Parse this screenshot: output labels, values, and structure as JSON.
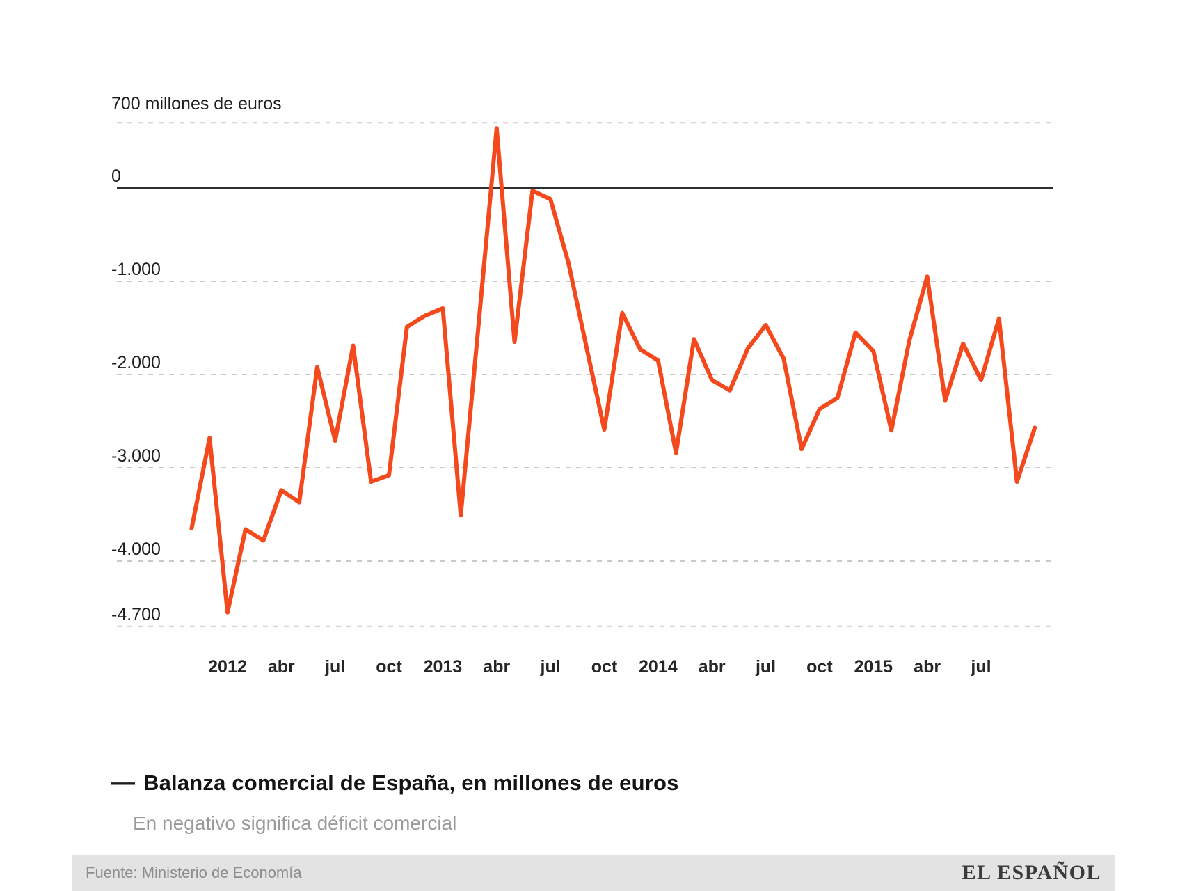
{
  "chart": {
    "y_ticks": [
      {
        "value": 700,
        "label": "700 millones de euros"
      },
      {
        "value": 0,
        "label": "0"
      },
      {
        "value": -1000,
        "label": "-1.000"
      },
      {
        "value": -2000,
        "label": "-2.000"
      },
      {
        "value": -3000,
        "label": "-3.000"
      },
      {
        "value": -4000,
        "label": "-4.000"
      },
      {
        "value": -4700,
        "label": "-4.700"
      }
    ],
    "x_ticks": [
      "2012",
      "abr",
      "jul",
      "oct",
      "2013",
      "abr",
      "jul",
      "oct",
      "2014",
      "abr",
      "jul",
      "oct",
      "2015",
      "abr",
      "jul"
    ]
  },
  "chart_data": {
    "type": "line",
    "title": "Balanza comercial de España, en millones de euros",
    "subtitle": "En negativo significa déficit comercial",
    "unit": "millones de euros",
    "ylim": [
      -4700,
      700
    ],
    "grid": "horizontal-dashed",
    "legend_position": "bottom-left",
    "series_color": "#f4481d",
    "zero_line_color": "#2f2f2f",
    "x": [
      "nov 2011",
      "dic 2011",
      "ene 2012",
      "feb 2012",
      "mar 2012",
      "abr 2012",
      "may 2012",
      "jun 2012",
      "jul 2012",
      "ago 2012",
      "sep 2012",
      "oct 2012",
      "nov 2012",
      "dic 2012",
      "ene 2013",
      "feb 2013",
      "mar 2013",
      "abr 2013",
      "may 2013",
      "jun 2013",
      "jul 2013",
      "ago 2013",
      "sep 2013",
      "oct 2013",
      "nov 2013",
      "dic 2013",
      "ene 2014",
      "feb 2014",
      "mar 2014",
      "abr 2014",
      "may 2014",
      "jun 2014",
      "jul 2014",
      "ago 2014",
      "sep 2014",
      "oct 2014",
      "nov 2014",
      "dic 2014",
      "ene 2015",
      "feb 2015",
      "mar 2015",
      "abr 2015",
      "may 2015",
      "jun 2015",
      "jul 2015",
      "ago 2015",
      "sep 2015",
      "oct 2015"
    ],
    "values": [
      -3650,
      -2680,
      -4550,
      -3660,
      -3780,
      -3240,
      -3370,
      -1920,
      -2710,
      -1690,
      -3150,
      -3080,
      -1490,
      -1370,
      -1290,
      -3510,
      -1450,
      640,
      -1650,
      -30,
      -120,
      -800,
      -1700,
      -2590,
      -1340,
      -1730,
      -1850,
      -2840,
      -1620,
      -2060,
      -2170,
      -1720,
      -1470,
      -1830,
      -2800,
      -2370,
      -2250,
      -1550,
      -1750,
      -2600,
      -1640,
      -950,
      -2280,
      -1670,
      -2060,
      -1400,
      -3150,
      -2570
    ]
  },
  "legend": {
    "dash": "—"
  },
  "footer": {
    "source": "Fuente: Ministerio de Economía",
    "brand": "EL ESPAÑOL"
  }
}
